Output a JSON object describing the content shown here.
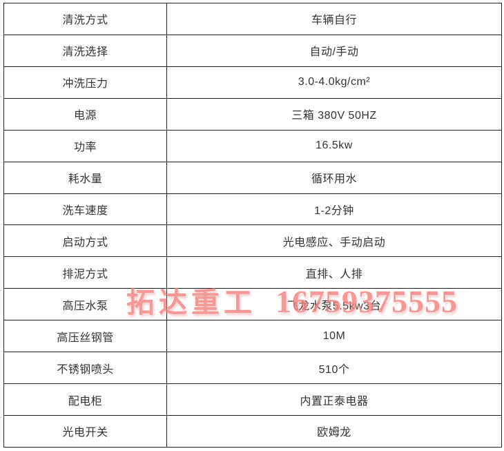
{
  "watermark": {
    "brand": "拓达重工",
    "phone": "16759375555",
    "color": "#f28282"
  },
  "table": {
    "rows": [
      {
        "label": "清洗方式",
        "value": "车辆自行"
      },
      {
        "label": "清洗选择",
        "value": "自动/手动"
      },
      {
        "label": "冲洗压力",
        "value": "3.0-4.0kg/cm²"
      },
      {
        "label": "电源",
        "value": "三箱 380V 50HZ"
      },
      {
        "label": "功率",
        "value": "16.5kw"
      },
      {
        "label": "耗水量",
        "value": "循环用水"
      },
      {
        "label": "洗车速度",
        "value": "1-2分钟"
      },
      {
        "label": "启动方式",
        "value": "光电感应、手动启动"
      },
      {
        "label": "排泥方式",
        "value": "直排、人排"
      },
      {
        "label": "高压水泵",
        "value": "飞龙水泵5.5kw3台"
      },
      {
        "label": "高压丝钢管",
        "value": "10M"
      },
      {
        "label": "不锈钢喷头",
        "value": "510个"
      },
      {
        "label": "配电柜",
        "value": "内置正泰电器"
      },
      {
        "label": "光电开关",
        "value": "欧姆龙"
      }
    ]
  }
}
